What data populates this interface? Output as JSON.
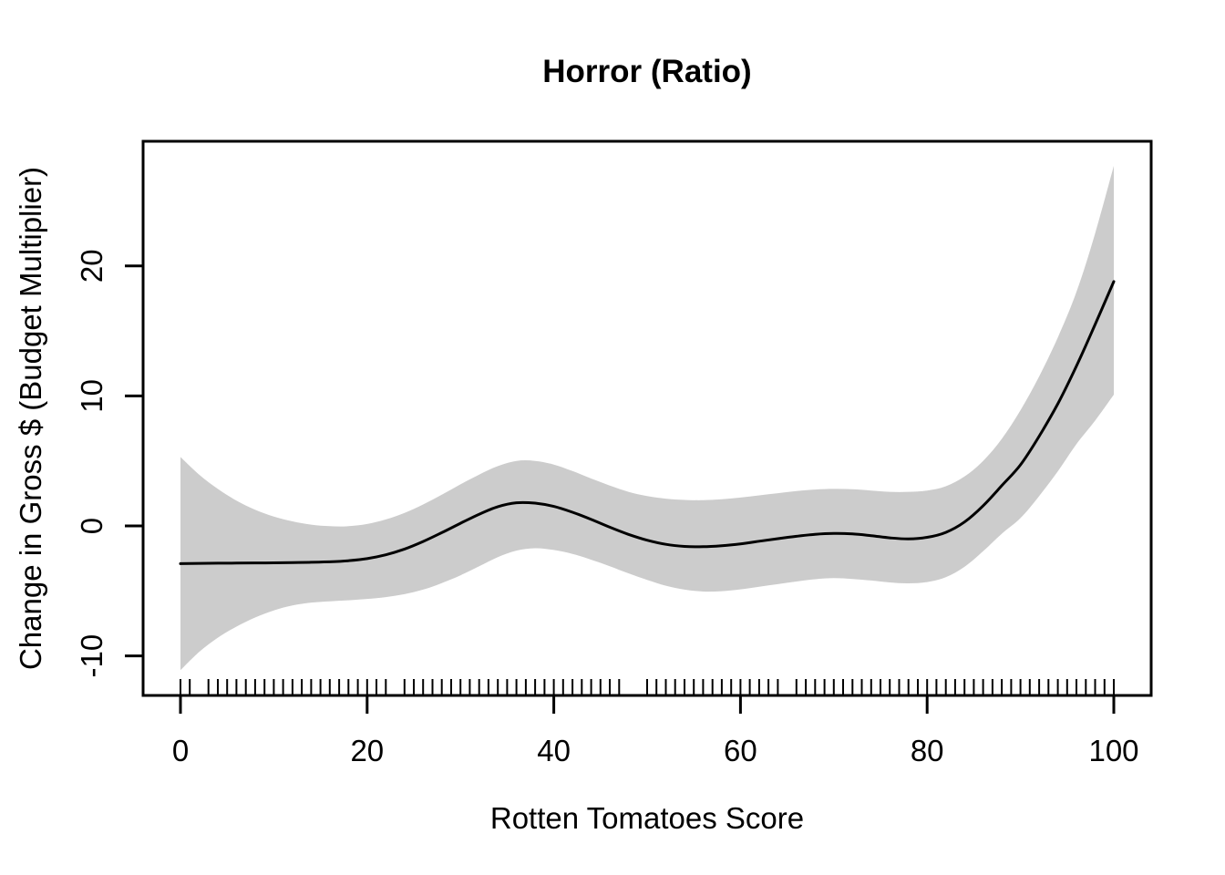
{
  "chart_data": {
    "type": "area",
    "title": "Horror (Ratio)",
    "xlabel": "Rotten Tomatoes Score",
    "ylabel": "Change in Gross $ (Budget Multiplier)",
    "x_ticks": [
      0,
      20,
      40,
      60,
      80,
      100
    ],
    "y_ticks": [
      -10,
      0,
      10,
      20
    ],
    "xlim": [
      -4,
      104
    ],
    "ylim": [
      -13.1,
      29.6
    ],
    "grid": false,
    "legend": "none",
    "x": [
      0,
      2,
      4,
      6,
      8,
      10,
      12,
      14,
      16,
      18,
      20,
      22,
      24,
      26,
      28,
      30,
      32,
      34,
      36,
      38,
      40,
      42,
      44,
      46,
      48,
      50,
      52,
      54,
      56,
      58,
      60,
      62,
      64,
      66,
      68,
      70,
      72,
      74,
      76,
      78,
      80,
      82,
      84,
      86,
      88,
      90,
      92,
      94,
      96,
      98,
      100
    ],
    "series": [
      {
        "name": "smooth_fit",
        "values": [
          -2.9,
          -2.88,
          -2.87,
          -2.86,
          -2.85,
          -2.84,
          -2.82,
          -2.8,
          -2.76,
          -2.68,
          -2.52,
          -2.22,
          -1.78,
          -1.2,
          -0.52,
          0.2,
          0.9,
          1.48,
          1.78,
          1.75,
          1.5,
          1.05,
          0.5,
          -0.1,
          -0.65,
          -1.1,
          -1.42,
          -1.58,
          -1.6,
          -1.52,
          -1.38,
          -1.18,
          -0.98,
          -0.8,
          -0.65,
          -0.58,
          -0.62,
          -0.75,
          -0.92,
          -1.0,
          -0.88,
          -0.5,
          0.3,
          1.55,
          3.1,
          4.7,
          6.9,
          9.4,
          12.3,
          15.5,
          18.8
        ]
      },
      {
        "name": "ci_upper",
        "values": [
          5.3,
          3.95,
          2.85,
          1.95,
          1.25,
          0.72,
          0.35,
          0.1,
          -0.02,
          -0.02,
          0.15,
          0.5,
          1.0,
          1.65,
          2.4,
          3.2,
          3.95,
          4.6,
          5.0,
          5.0,
          4.72,
          4.22,
          3.65,
          3.1,
          2.62,
          2.3,
          2.1,
          2.0,
          1.98,
          2.05,
          2.18,
          2.35,
          2.52,
          2.68,
          2.8,
          2.85,
          2.82,
          2.72,
          2.62,
          2.62,
          2.72,
          3.05,
          3.8,
          5.0,
          6.7,
          8.9,
          11.5,
          14.5,
          18.0,
          22.5,
          27.7
        ]
      },
      {
        "name": "ci_lower",
        "values": [
          -11.1,
          -9.7,
          -8.6,
          -7.75,
          -7.05,
          -6.5,
          -6.12,
          -5.9,
          -5.8,
          -5.72,
          -5.62,
          -5.48,
          -5.25,
          -4.9,
          -4.4,
          -3.8,
          -3.1,
          -2.4,
          -1.9,
          -1.72,
          -1.85,
          -2.15,
          -2.6,
          -3.1,
          -3.65,
          -4.15,
          -4.6,
          -4.9,
          -5.05,
          -5.02,
          -4.88,
          -4.68,
          -4.48,
          -4.28,
          -4.1,
          -4.02,
          -4.08,
          -4.2,
          -4.35,
          -4.42,
          -4.32,
          -3.95,
          -3.15,
          -1.95,
          -0.6,
          0.6,
          2.3,
          4.2,
          6.3,
          8.1,
          10.1
        ]
      }
    ],
    "rug_x": [
      0,
      1,
      3,
      4,
      5,
      6,
      7,
      8,
      9,
      10,
      11,
      12,
      13,
      14,
      15,
      16,
      17,
      18,
      19,
      20,
      21,
      22,
      24,
      25,
      26,
      27,
      28,
      29,
      30,
      31,
      32,
      33,
      34,
      35,
      36,
      37,
      38,
      39,
      40,
      41,
      42,
      43,
      44,
      45,
      46,
      47,
      50,
      51,
      52,
      53,
      54,
      55,
      56,
      57,
      58,
      59,
      60,
      61,
      62,
      63,
      64,
      66,
      67,
      68,
      69,
      70,
      71,
      72,
      73,
      74,
      75,
      76,
      77,
      78,
      79,
      80,
      81,
      82,
      83,
      84,
      85,
      86,
      87,
      88,
      89,
      90,
      91,
      92,
      93,
      94,
      95,
      96,
      97,
      98,
      99,
      100
    ],
    "colors": {
      "band": "#cccccc",
      "line": "#000000",
      "axis": "#000000",
      "text": "#000000",
      "background": "#ffffff"
    }
  }
}
